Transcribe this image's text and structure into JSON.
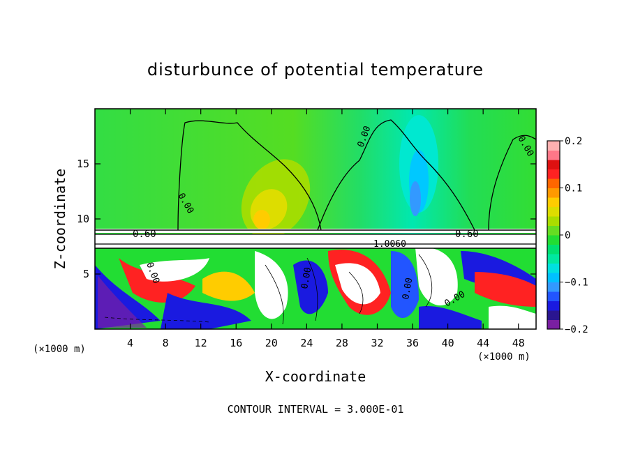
{
  "chart_data": {
    "type": "heatmap",
    "title": "disturbunce of potential temperature",
    "xlabel": "X-coordinate",
    "ylabel": "Z-coordinate",
    "x_unit": "(×1000 m)",
    "z_unit": "(×1000 m)",
    "xlim": [
      0,
      50
    ],
    "ylim": [
      0,
      20
    ],
    "x_ticks": [
      "4",
      "8",
      "12",
      "16",
      "20",
      "24",
      "28",
      "32",
      "36",
      "40",
      "44",
      "48"
    ],
    "x_tick_values": [
      4,
      8,
      12,
      16,
      20,
      24,
      28,
      32,
      36,
      40,
      44,
      48
    ],
    "y_ticks": [
      "5",
      "10",
      "15"
    ],
    "y_tick_values": [
      5,
      10,
      15
    ],
    "colorbar": {
      "min": -0.2,
      "max": 0.2,
      "labels": [
        "0.2",
        "0.1",
        "0",
        "−0.1",
        "−0.2"
      ],
      "label_values": [
        0.2,
        0.1,
        0,
        -0.1,
        -0.2
      ],
      "colors": [
        "#7a1fa2",
        "#2a1590",
        "#1a1ae0",
        "#2255ff",
        "#3399ff",
        "#00c0ff",
        "#00e0e0",
        "#00e8a0",
        "#00e070",
        "#22dd33",
        "#66dd22",
        "#aadd00",
        "#dddd00",
        "#ffcc00",
        "#ff9900",
        "#ff6600",
        "#ff2222",
        "#dd1111",
        "#ff7788",
        "#ffb0b0"
      ]
    },
    "contour_labels": [
      "0.00",
      "0.00",
      "0.00",
      "0.60",
      "0.60",
      "1.0060",
      "0.00",
      "0.00",
      "0.00",
      "0.00"
    ],
    "footer": "CONTOUR INTERVAL = 3.000E-01"
  }
}
